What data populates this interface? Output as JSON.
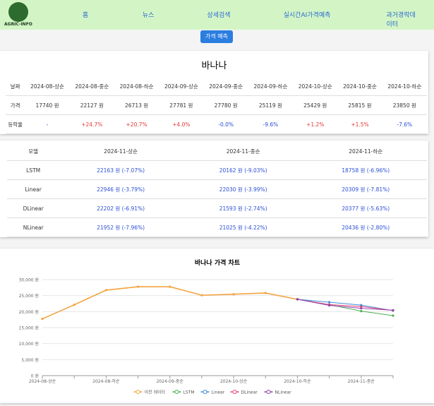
{
  "nav": {
    "logo": "AGRIC-INFO",
    "items": [
      "홈",
      "뉴스",
      "상세검색",
      "실시간AI가격예측",
      "과거경락데이터"
    ]
  },
  "button": "가격 예측",
  "title": "바나나",
  "price_table": {
    "header": [
      "날짜",
      "2024-08-상순",
      "2024-08-중순",
      "2024-08-하순",
      "2024-09-상순",
      "2024-09-중순",
      "2024-09-하순",
      "2024-10-상순",
      "2024-10-중순",
      "2024-10-하순"
    ],
    "rows": [
      [
        "가격",
        "17740 원",
        "22127 원",
        "26713 원",
        "27781 원",
        "27780 원",
        "25119 원",
        "25429 원",
        "25815 원",
        "23850 원"
      ],
      [
        "등락율",
        "-",
        "+24.7%",
        "+20.7%",
        "+4.0%",
        "-0.0%",
        "-9.6%",
        "+1.2%",
        "+1.5%",
        "-7.6%"
      ]
    ]
  },
  "model_table": {
    "header": [
      "모델",
      "2024-11-상순",
      "2024-11-중순",
      "2024-11-하순"
    ],
    "rows": [
      [
        "LSTM",
        "22163 원 (-7.07%)",
        "20162 원 (-9.03%)",
        "18758 원 (-6.96%)"
      ],
      [
        "Linear",
        "22946 원 (-3.79%)",
        "22030 원 (-3.99%)",
        "20309 원 (-7.81%)"
      ],
      [
        "DLinear",
        "22202 원 (-6.91%)",
        "21593 원 (-2.74%)",
        "20377 원 (-5.63%)"
      ],
      [
        "NLinear",
        "21952 원 (-7.96%)",
        "21025 원 (-4.22%)",
        "20436 원 (-2.80%)"
      ]
    ]
  },
  "chart_data": {
    "type": "line",
    "title": "바나나 가격 차트",
    "categories": [
      "2024-08-상순",
      null,
      "2024-08-하순",
      null,
      "2024-09-중순",
      null,
      "2024-10-상순",
      null,
      "2024-10-하순",
      null,
      "2024-11-중순",
      null
    ],
    "series": [
      {
        "name": "이전 데이터",
        "color": "#f4a340",
        "values": [
          17740,
          22127,
          26713,
          27781,
          27780,
          25119,
          25429,
          25815,
          23850,
          null,
          null,
          null
        ]
      },
      {
        "name": "LSTM",
        "color": "#4caf50",
        "values": [
          null,
          null,
          null,
          null,
          null,
          null,
          null,
          null,
          23850,
          22163,
          20162,
          18758
        ]
      },
      {
        "name": "Linear",
        "color": "#3a8fd9",
        "values": [
          null,
          null,
          null,
          null,
          null,
          null,
          null,
          null,
          23850,
          22946,
          22030,
          20309
        ]
      },
      {
        "name": "DLinear",
        "color": "#e0457b",
        "values": [
          null,
          null,
          null,
          null,
          null,
          null,
          null,
          null,
          23850,
          22202,
          21593,
          20377
        ]
      },
      {
        "name": "NLinear",
        "color": "#8e44ad",
        "values": [
          null,
          null,
          null,
          null,
          null,
          null,
          null,
          null,
          23850,
          21952,
          21025,
          20436
        ]
      }
    ],
    "ylim": [
      0,
      30000
    ],
    "yticks": [
      {
        "value": 0,
        "label": "0 원"
      },
      {
        "value": 5000,
        "label": "5,000 원"
      },
      {
        "value": 10000,
        "label": "10,000 원"
      },
      {
        "value": 15000,
        "label": "15,000 원"
      },
      {
        "value": 20000,
        "label": "20,000 원"
      },
      {
        "value": 25000,
        "label": "25,000 원"
      },
      {
        "value": 30000,
        "label": "30,000 원"
      }
    ],
    "grid": true,
    "legend": "bottom"
  }
}
